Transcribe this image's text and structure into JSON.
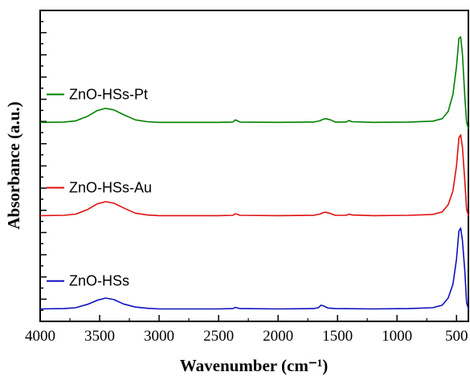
{
  "chart_data": {
    "type": "line",
    "title": "",
    "xlabel": "Wavenumber (cm⁻¹)",
    "ylabel": "Absorbance (a.u.)",
    "xlim": [
      4000,
      400
    ],
    "x_reversed": true,
    "x_ticks": [
      4000,
      3500,
      3000,
      2500,
      2000,
      1500,
      1000,
      500
    ],
    "x_tick_labels": [
      "4000",
      "3500",
      "3000",
      "2500",
      "2000",
      "1500",
      "1000",
      "500"
    ],
    "ylim": [
      0,
      1.0
    ],
    "y_tick_labels_shown": false,
    "legend": "inline labels above each curve",
    "series": [
      {
        "name": "ZnO-HSs-Pt",
        "color": "#008000",
        "points": [
          [
            4000,
            0.64
          ],
          [
            3800,
            0.641
          ],
          [
            3700,
            0.645
          ],
          [
            3600,
            0.66
          ],
          [
            3520,
            0.678
          ],
          [
            3450,
            0.685
          ],
          [
            3380,
            0.68
          ],
          [
            3300,
            0.665
          ],
          [
            3200,
            0.648
          ],
          [
            3100,
            0.642
          ],
          [
            3000,
            0.64
          ],
          [
            2500,
            0.64
          ],
          [
            2380,
            0.641
          ],
          [
            2360,
            0.648
          ],
          [
            2340,
            0.645
          ],
          [
            2320,
            0.641
          ],
          [
            2000,
            0.64
          ],
          [
            1700,
            0.641
          ],
          [
            1650,
            0.645
          ],
          [
            1620,
            0.65
          ],
          [
            1600,
            0.652
          ],
          [
            1560,
            0.648
          ],
          [
            1520,
            0.641
          ],
          [
            1430,
            0.641
          ],
          [
            1400,
            0.646
          ],
          [
            1380,
            0.642
          ],
          [
            1200,
            0.64
          ],
          [
            900,
            0.641
          ],
          [
            700,
            0.644
          ],
          [
            620,
            0.652
          ],
          [
            570,
            0.675
          ],
          [
            530,
            0.73
          ],
          [
            500,
            0.82
          ],
          [
            480,
            0.91
          ],
          [
            465,
            0.915
          ],
          [
            450,
            0.86
          ],
          [
            430,
            0.72
          ],
          [
            415,
            0.64
          ],
          [
            400,
            0.62
          ]
        ]
      },
      {
        "name": "ZnO-HSs-Au",
        "color": "#e01010",
        "points": [
          [
            4000,
            0.34
          ],
          [
            3800,
            0.341
          ],
          [
            3700,
            0.345
          ],
          [
            3600,
            0.36
          ],
          [
            3520,
            0.378
          ],
          [
            3450,
            0.385
          ],
          [
            3380,
            0.38
          ],
          [
            3300,
            0.365
          ],
          [
            3200,
            0.348
          ],
          [
            3100,
            0.342
          ],
          [
            3000,
            0.34
          ],
          [
            2500,
            0.34
          ],
          [
            2380,
            0.341
          ],
          [
            2360,
            0.346
          ],
          [
            2340,
            0.344
          ],
          [
            2320,
            0.341
          ],
          [
            2000,
            0.34
          ],
          [
            1700,
            0.341
          ],
          [
            1650,
            0.345
          ],
          [
            1620,
            0.35
          ],
          [
            1600,
            0.351
          ],
          [
            1560,
            0.347
          ],
          [
            1520,
            0.341
          ],
          [
            1430,
            0.341
          ],
          [
            1400,
            0.345
          ],
          [
            1380,
            0.342
          ],
          [
            1200,
            0.34
          ],
          [
            900,
            0.341
          ],
          [
            700,
            0.344
          ],
          [
            620,
            0.352
          ],
          [
            570,
            0.375
          ],
          [
            530,
            0.42
          ],
          [
            500,
            0.5
          ],
          [
            480,
            0.59
          ],
          [
            465,
            0.6
          ],
          [
            450,
            0.56
          ],
          [
            430,
            0.45
          ],
          [
            415,
            0.36
          ],
          [
            400,
            0.34
          ]
        ]
      },
      {
        "name": "ZnO-HSs",
        "color": "#1010c0",
        "points": [
          [
            4000,
            0.04
          ],
          [
            3800,
            0.041
          ],
          [
            3700,
            0.044
          ],
          [
            3600,
            0.055
          ],
          [
            3520,
            0.068
          ],
          [
            3450,
            0.075
          ],
          [
            3380,
            0.07
          ],
          [
            3300,
            0.056
          ],
          [
            3200,
            0.046
          ],
          [
            3100,
            0.042
          ],
          [
            3000,
            0.04
          ],
          [
            2500,
            0.04
          ],
          [
            2380,
            0.041
          ],
          [
            2360,
            0.045
          ],
          [
            2340,
            0.043
          ],
          [
            2320,
            0.041
          ],
          [
            2000,
            0.04
          ],
          [
            1700,
            0.041
          ],
          [
            1660,
            0.044
          ],
          [
            1640,
            0.052
          ],
          [
            1620,
            0.05
          ],
          [
            1580,
            0.043
          ],
          [
            1520,
            0.041
          ],
          [
            1200,
            0.04
          ],
          [
            900,
            0.041
          ],
          [
            700,
            0.044
          ],
          [
            620,
            0.052
          ],
          [
            570,
            0.075
          ],
          [
            530,
            0.12
          ],
          [
            500,
            0.2
          ],
          [
            480,
            0.29
          ],
          [
            465,
            0.3
          ],
          [
            450,
            0.26
          ],
          [
            430,
            0.16
          ],
          [
            415,
            0.06
          ],
          [
            400,
            0.04
          ]
        ]
      }
    ]
  }
}
